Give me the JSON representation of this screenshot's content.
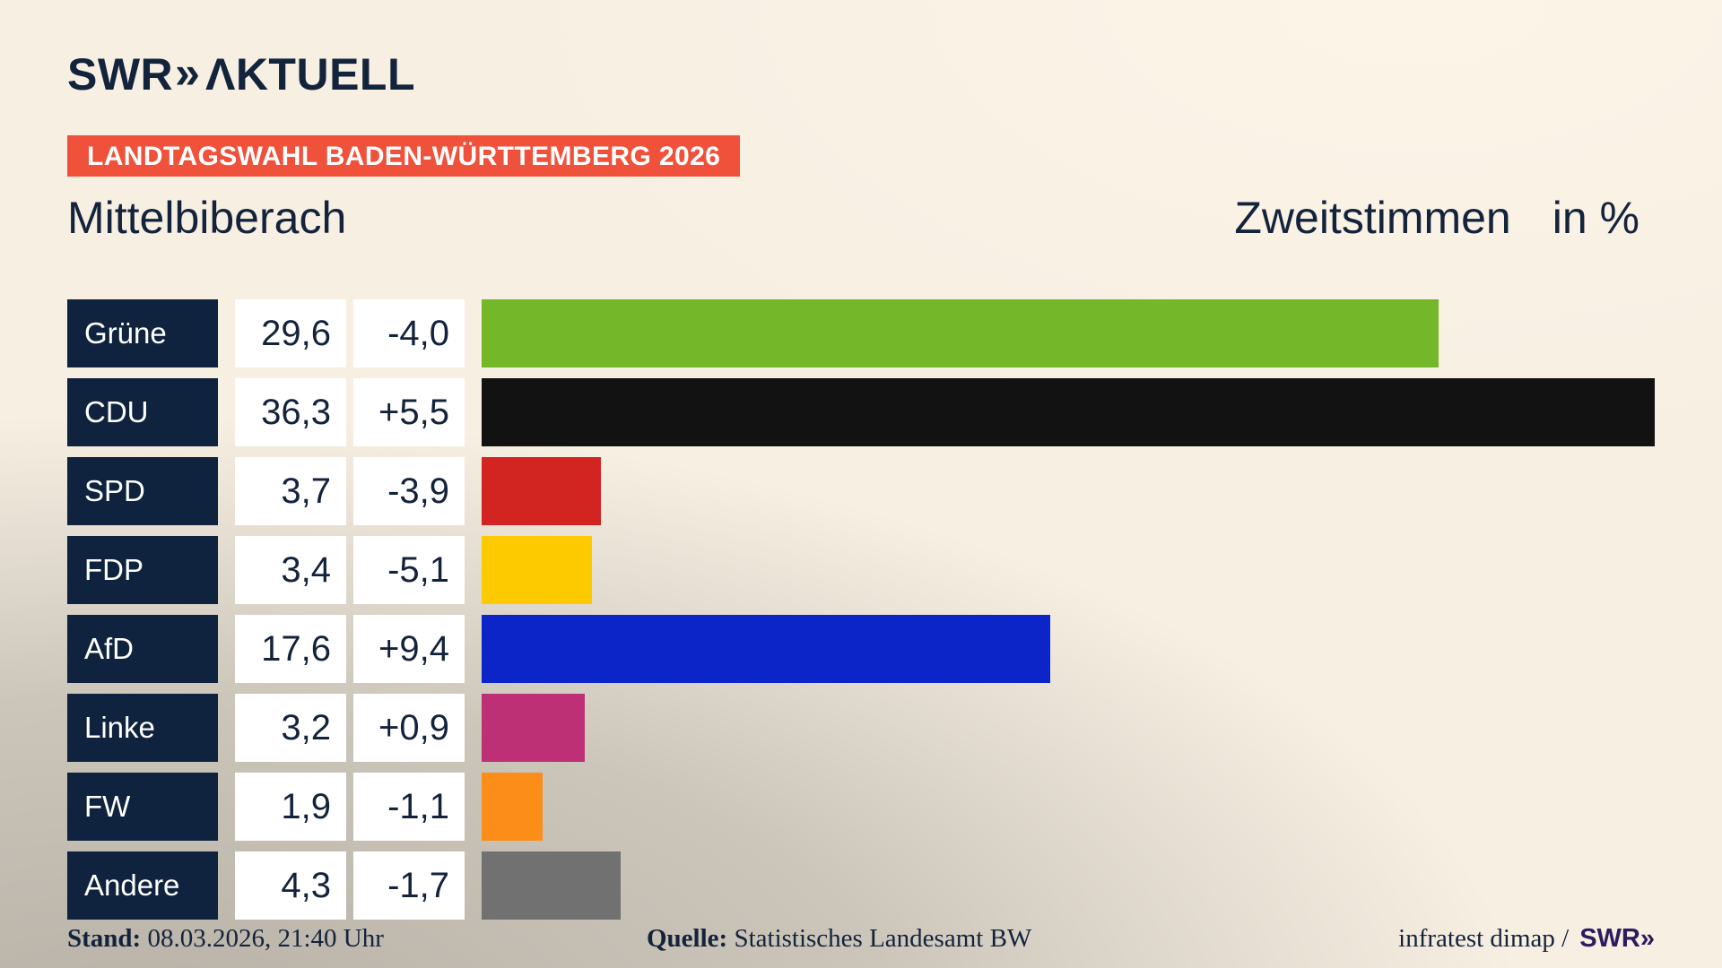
{
  "header": {
    "logo_swr": "SWR",
    "logo_chevrons": "»",
    "logo_aktuell": "ΛKTUELL",
    "banner": "LANDTAGSWAHL BADEN-WÜRTTEMBERG 2026",
    "title": "Mittelbiberach",
    "subtitle": "Zweitstimmen",
    "unit": "in %"
  },
  "chart_data": {
    "type": "bar",
    "orientation": "horizontal",
    "title": "Mittelbiberach",
    "subtitle": "Zweitstimmen in %",
    "unit": "%",
    "xlim": [
      0,
      36.3
    ],
    "grid": false,
    "legend": false,
    "categories": [
      "Grüne",
      "CDU",
      "SPD",
      "FDP",
      "AfD",
      "Linke",
      "FW",
      "Andere"
    ],
    "values": [
      29.6,
      36.3,
      3.7,
      3.4,
      17.6,
      3.2,
      1.9,
      4.3
    ],
    "diffs": [
      -4.0,
      5.5,
      -3.9,
      -5.1,
      9.4,
      0.9,
      -1.1,
      -1.7
    ],
    "value_labels": [
      "29,6",
      "36,3",
      "3,7",
      "3,4",
      "17,6",
      "3,2",
      "1,9",
      "4,3"
    ],
    "diff_labels": [
      "-4,0",
      "+5,5",
      "-3,9",
      "-5,1",
      "+9,4",
      "+0,9",
      "-1,1",
      "-1,7"
    ],
    "colors": [
      "#74b829",
      "#121212",
      "#d22420",
      "#fdca00",
      "#0b25c8",
      "#be3075",
      "#fb8d18",
      "#717171"
    ],
    "label_box_color": "#10233e",
    "value_box_color": "#ffffff"
  },
  "footer": {
    "stand_label": "Stand:",
    "stand_value": "08.03.2026, 21:40 Uhr",
    "quelle_label": "Quelle:",
    "quelle_value": "Statistisches Landesamt BW",
    "credit_text": "infratest dimap /",
    "credit_logo": "SWR»"
  },
  "colors": {
    "background_cream": "#f7efe2",
    "background_gray": "#c9c5be",
    "banner_red": "#f0513a",
    "navy": "#14233c",
    "footer_logo_purple": "#2b1c5d"
  }
}
